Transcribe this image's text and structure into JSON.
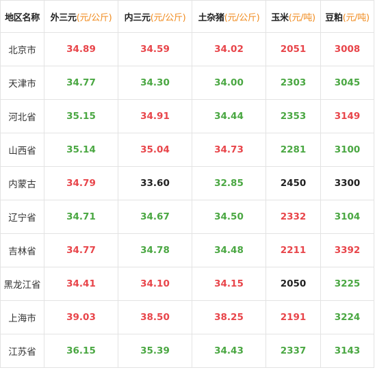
{
  "headers": [
    {
      "name": "地区名称",
      "unit": ""
    },
    {
      "name": "外三元",
      "unit": "(元/公斤)"
    },
    {
      "name": "内三元",
      "unit": "(元/公斤)"
    },
    {
      "name": "土杂猪",
      "unit": "(元/公斤)"
    },
    {
      "name": "玉米",
      "unit": "(元/吨)"
    },
    {
      "name": "豆粕",
      "unit": "(元/吨)"
    }
  ],
  "status_colors": {
    "up": "#e8454a",
    "down": "#4aa742",
    "flat": "#222222",
    "unit": "#f08a1c"
  },
  "rows": [
    {
      "region": "北京市",
      "cells": [
        {
          "value": "34.89",
          "trend": "up"
        },
        {
          "value": "34.59",
          "trend": "up"
        },
        {
          "value": "34.02",
          "trend": "up"
        },
        {
          "value": "2051",
          "trend": "up"
        },
        {
          "value": "3008",
          "trend": "up"
        }
      ]
    },
    {
      "region": "天津市",
      "cells": [
        {
          "value": "34.77",
          "trend": "down"
        },
        {
          "value": "34.30",
          "trend": "down"
        },
        {
          "value": "34.00",
          "trend": "down"
        },
        {
          "value": "2303",
          "trend": "down"
        },
        {
          "value": "3045",
          "trend": "down"
        }
      ]
    },
    {
      "region": "河北省",
      "cells": [
        {
          "value": "35.15",
          "trend": "down"
        },
        {
          "value": "34.91",
          "trend": "up"
        },
        {
          "value": "34.44",
          "trend": "down"
        },
        {
          "value": "2353",
          "trend": "down"
        },
        {
          "value": "3149",
          "trend": "up"
        }
      ]
    },
    {
      "region": "山西省",
      "cells": [
        {
          "value": "35.14",
          "trend": "down"
        },
        {
          "value": "35.04",
          "trend": "up"
        },
        {
          "value": "34.73",
          "trend": "up"
        },
        {
          "value": "2281",
          "trend": "down"
        },
        {
          "value": "3100",
          "trend": "down"
        }
      ]
    },
    {
      "region": "内蒙古",
      "cells": [
        {
          "value": "34.79",
          "trend": "up"
        },
        {
          "value": "33.60",
          "trend": "flat"
        },
        {
          "value": "32.85",
          "trend": "down"
        },
        {
          "value": "2450",
          "trend": "flat"
        },
        {
          "value": "3300",
          "trend": "flat"
        }
      ]
    },
    {
      "region": "辽宁省",
      "cells": [
        {
          "value": "34.71",
          "trend": "down"
        },
        {
          "value": "34.67",
          "trend": "down"
        },
        {
          "value": "34.50",
          "trend": "down"
        },
        {
          "value": "2332",
          "trend": "up"
        },
        {
          "value": "3104",
          "trend": "down"
        }
      ]
    },
    {
      "region": "吉林省",
      "cells": [
        {
          "value": "34.77",
          "trend": "up"
        },
        {
          "value": "34.78",
          "trend": "down"
        },
        {
          "value": "34.48",
          "trend": "down"
        },
        {
          "value": "2211",
          "trend": "up"
        },
        {
          "value": "3392",
          "trend": "up"
        }
      ]
    },
    {
      "region": "黑龙江省",
      "cells": [
        {
          "value": "34.41",
          "trend": "up"
        },
        {
          "value": "34.10",
          "trend": "up"
        },
        {
          "value": "34.15",
          "trend": "up"
        },
        {
          "value": "2050",
          "trend": "flat"
        },
        {
          "value": "3225",
          "trend": "down"
        }
      ]
    },
    {
      "region": "上海市",
      "cells": [
        {
          "value": "39.03",
          "trend": "up"
        },
        {
          "value": "38.50",
          "trend": "up"
        },
        {
          "value": "38.25",
          "trend": "up"
        },
        {
          "value": "2191",
          "trend": "up"
        },
        {
          "value": "3224",
          "trend": "down"
        }
      ]
    },
    {
      "region": "江苏省",
      "cells": [
        {
          "value": "36.15",
          "trend": "down"
        },
        {
          "value": "35.39",
          "trend": "down"
        },
        {
          "value": "34.43",
          "trend": "down"
        },
        {
          "value": "2337",
          "trend": "down"
        },
        {
          "value": "3143",
          "trend": "down"
        }
      ]
    }
  ]
}
